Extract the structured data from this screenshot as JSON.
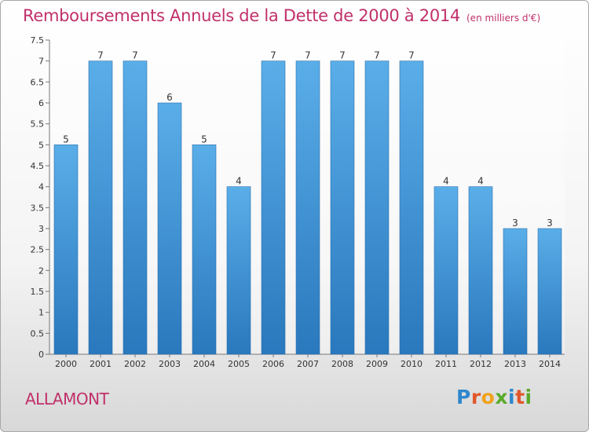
{
  "header": {
    "title": "Remboursements Annuels de la Dette de 2000 à 2014",
    "unit_note": "(en milliers d'€)"
  },
  "footer": {
    "commune": "ALLAMONT",
    "logo_letters": [
      "P",
      "r",
      "o",
      "x",
      "i",
      "t",
      "i"
    ]
  },
  "colors": {
    "title": "#c0306a",
    "bar_top": "#5aaee8",
    "bar_bottom": "#2a78bd"
  },
  "chart_data": {
    "type": "bar",
    "title": "Remboursements Annuels de la Dette de 2000 à 2014",
    "xlabel": "",
    "ylabel": "",
    "categories": [
      "2000",
      "2001",
      "2002",
      "2003",
      "2004",
      "2005",
      "2006",
      "2007",
      "2008",
      "2009",
      "2010",
      "2011",
      "2012",
      "2013",
      "2014"
    ],
    "values": [
      5,
      7,
      7,
      6,
      5,
      4,
      7,
      7,
      7,
      7,
      7,
      4,
      4,
      3,
      3
    ],
    "value_labels": [
      "5",
      "7",
      "7",
      "6",
      "5",
      "4",
      "7",
      "7",
      "7",
      "7",
      "7",
      "4",
      "4",
      "3",
      "3"
    ],
    "ylim": [
      0,
      7.5
    ],
    "yticks": [
      0,
      0.5,
      1,
      1.5,
      2,
      2.5,
      3,
      3.5,
      4,
      4.5,
      5,
      5.5,
      6,
      6.5,
      7,
      7.5
    ],
    "ytick_labels": [
      "0",
      "0.5",
      "1",
      "1.5",
      "2",
      "2.5",
      "3",
      "3.5",
      "4",
      "4.5",
      "5",
      "5.5",
      "6",
      "6.5",
      "7",
      "7.5"
    ],
    "grid": false,
    "legend": "none"
  }
}
